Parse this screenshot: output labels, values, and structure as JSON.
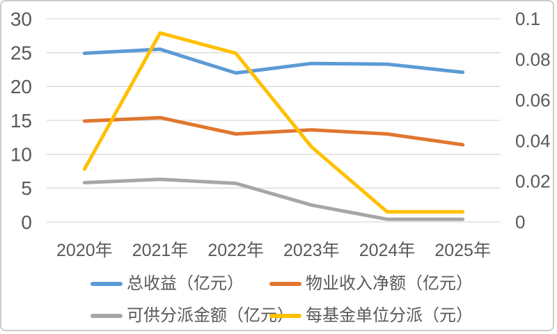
{
  "card": {
    "background": "#FFFFFF",
    "border_color": "#CBCBCB"
  },
  "colors": {
    "text": "#595959",
    "grid": "#D9D9D9"
  },
  "chart_data": {
    "type": "line",
    "categories": [
      "2020年",
      "2021年",
      "2022年",
      "2023年",
      "2024年",
      "2025年"
    ],
    "series": [
      {
        "name": "总收益（亿元）",
        "axis": "left",
        "color": "#5B9BD5",
        "values": [
          24.9,
          25.5,
          22.0,
          23.4,
          23.3,
          22.1
        ]
      },
      {
        "name": "物业收入净额（亿元）",
        "axis": "left",
        "color": "#E0762F",
        "values": [
          14.9,
          15.4,
          13.0,
          13.6,
          13.0,
          11.4
        ]
      },
      {
        "name": "可供分派金额（亿元）",
        "axis": "left",
        "color": "#A6A6A6",
        "values": [
          5.8,
          6.3,
          5.7,
          2.5,
          0.4,
          0.4
        ]
      },
      {
        "name": "每基金单位分派（元）",
        "axis": "right",
        "color": "#FFC000",
        "values": [
          0.026,
          0.093,
          0.083,
          0.037,
          0.005,
          0.005
        ]
      }
    ],
    "left_axis": {
      "min": 0,
      "max": 30,
      "step": 5,
      "tick_labels": [
        "0",
        "5",
        "10",
        "15",
        "20",
        "25",
        "30"
      ]
    },
    "right_axis": {
      "min": 0,
      "max": 0.1,
      "step": 0.02,
      "tick_labels": [
        "0",
        "0.02",
        "0.04",
        "0.06",
        "0.08",
        "0.1"
      ]
    },
    "grid": true,
    "legend_position": "bottom"
  }
}
